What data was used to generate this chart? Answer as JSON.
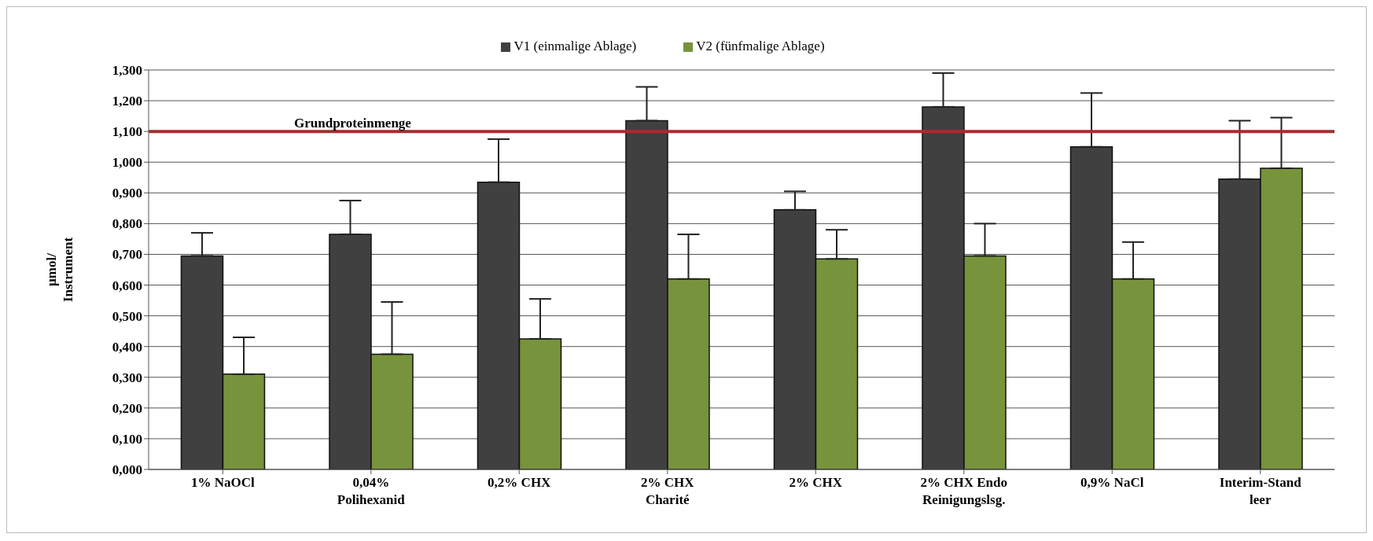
{
  "chart_data": {
    "type": "bar",
    "ylabel": "µmol/\nInstrument",
    "categories": [
      "1% NaOCl",
      "0,04%\nPolihexanid",
      "0,2% CHX",
      "2% CHX\nCharité",
      "2% CHX",
      "2% CHX Endo\nReinigungslsg.",
      "0,9% NaCl",
      "Interim-Stand\nleer"
    ],
    "series": [
      {
        "name": "V1 (einmalige Ablage)",
        "color": "#404040",
        "values": [
          0.695,
          0.765,
          0.935,
          1.135,
          0.845,
          1.18,
          1.05,
          0.945
        ],
        "errors": [
          [
            0.695,
            0.77
          ],
          [
            0.765,
            0.875
          ],
          [
            0.935,
            1.075
          ],
          [
            1.135,
            1.245
          ],
          [
            0.845,
            0.905
          ],
          [
            1.18,
            1.29
          ],
          [
            1.05,
            1.225
          ],
          [
            0.945,
            1.135
          ]
        ]
      },
      {
        "name": "V2 (fünfmalige Ablage)",
        "color": "#77933c",
        "values": [
          0.31,
          0.375,
          0.425,
          0.62,
          0.685,
          0.695,
          0.62,
          0.98
        ],
        "errors": [
          [
            0.31,
            0.43
          ],
          [
            0.375,
            0.545
          ],
          [
            0.425,
            0.555
          ],
          [
            0.62,
            0.765
          ],
          [
            0.685,
            0.78
          ],
          [
            0.695,
            0.8
          ],
          [
            0.62,
            0.74
          ],
          [
            0.98,
            1.145
          ]
        ]
      }
    ],
    "ylim": [
      0,
      1.3
    ],
    "yticks": [
      {
        "value": 0,
        "label": "0,000"
      },
      {
        "value": 0.1,
        "label": "0,100"
      },
      {
        "value": 0.2,
        "label": "0,200"
      },
      {
        "value": 0.3,
        "label": "0,300"
      },
      {
        "value": 0.4,
        "label": "0,400"
      },
      {
        "value": 0.5,
        "label": "0,500"
      },
      {
        "value": 0.6,
        "label": "0,600"
      },
      {
        "value": 0.7,
        "label": "0,700"
      },
      {
        "value": 0.8,
        "label": "0,800"
      },
      {
        "value": 0.9,
        "label": "0,900"
      },
      {
        "value": 1.0,
        "label": "1,000"
      },
      {
        "value": 1.1,
        "label": "1,100"
      },
      {
        "value": 1.2,
        "label": "1,200"
      },
      {
        "value": 1.3,
        "label": "1,300"
      }
    ],
    "ref_lines": [
      {
        "axis": "y",
        "value": 1.1,
        "label": "Grundproteinmenge",
        "color": "#a0302f"
      }
    ],
    "grid": "y",
    "legend": "top"
  }
}
